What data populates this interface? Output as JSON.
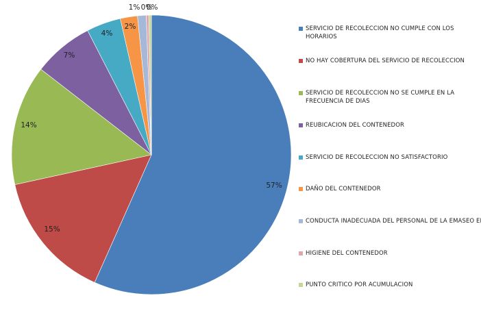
{
  "chart_data": {
    "type": "pie",
    "categories": [
      "SERVICIO DE RECOLECCION NO CUMPLE CON LOS HORARIOS",
      "NO HAY COBERTURA DEL SERVICIO DE RECOLECCION",
      "SERVICIO DE RECOLECCION NO SE CUMPLE EN LA FRECUENCIA DE DIAS",
      "REUBICACION DEL CONTENEDOR",
      "SERVICIO DE RECOLECCION NO SATISFACTORIO",
      "DAÑO DEL CONTENEDOR",
      "CONDUCTA INADECUADA DEL PERSONAL DE LA EMASEO EP",
      "HIGIENE DEL CONTENEDOR",
      "PUNTO CRITICO POR ACUMULACION"
    ],
    "values": [
      57,
      15,
      14,
      7,
      4,
      2,
      1,
      0.3,
      0.3
    ],
    "data_labels": [
      "57%",
      "15%",
      "14%",
      "7%",
      "4%",
      "2%",
      "1%",
      "0%",
      "0%"
    ],
    "colors": [
      "#4a7ebb",
      "#be4b48",
      "#98b954",
      "#7d60a0",
      "#46aac5",
      "#f69546",
      "#a5b8d8",
      "#dda9a8",
      "#c3d69b"
    ],
    "legend_position": "right",
    "start": "top, clockwise"
  }
}
